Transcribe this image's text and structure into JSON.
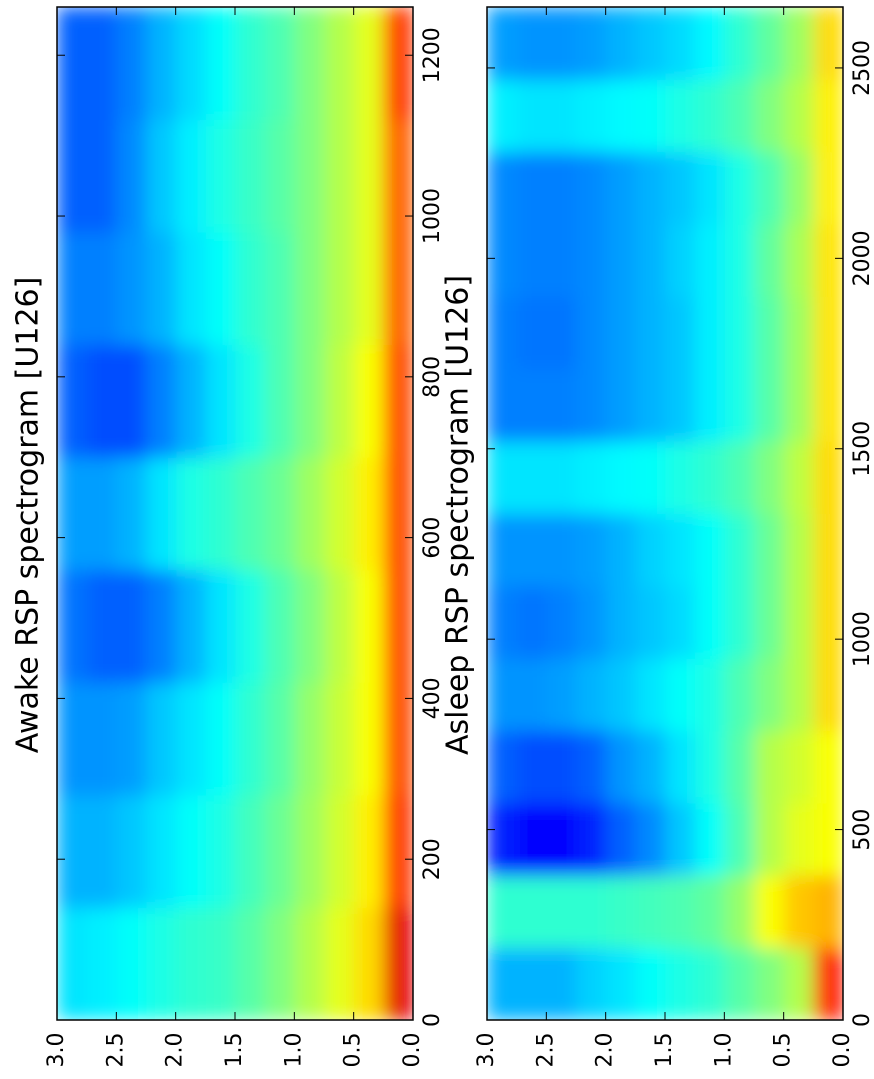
{
  "chart_data": [
    {
      "type": "heatmap",
      "title": "Awake RSP spectrogram [U126]",
      "colormap": "jet",
      "clim": [
        0,
        1
      ],
      "xlim": [
        0,
        1260
      ],
      "xticks": [
        0,
        200,
        400,
        600,
        800,
        1000,
        1200
      ],
      "ylim": [
        0,
        3
      ],
      "yticks": [
        {
          "value": 0,
          "label": "0.0"
        },
        {
          "value": 0.5,
          "label": "0.5"
        },
        {
          "value": 1,
          "label": "1.0"
        },
        {
          "value": 1.5,
          "label": "1.5"
        },
        {
          "value": 2,
          "label": "2.0"
        },
        {
          "value": 2.5,
          "label": "2.5"
        },
        {
          "value": 3,
          "label": "3.0"
        }
      ],
      "x_edges": [
        0,
        140,
        280,
        420,
        560,
        700,
        840,
        980,
        1120,
        1260
      ],
      "y_edges": [
        0,
        0.25,
        0.5,
        0.75,
        1,
        1.25,
        1.5,
        1.75,
        2,
        2.25,
        2.5,
        2.75,
        3
      ],
      "z": [
        [
          0.9,
          0.66,
          0.6,
          0.55,
          0.5,
          0.46,
          0.43,
          0.42,
          0.4,
          0.38,
          0.36,
          0.35
        ],
        [
          0.82,
          0.64,
          0.58,
          0.53,
          0.48,
          0.44,
          0.4,
          0.38,
          0.35,
          0.32,
          0.3,
          0.3
        ],
        [
          0.8,
          0.62,
          0.57,
          0.52,
          0.46,
          0.42,
          0.38,
          0.35,
          0.32,
          0.28,
          0.27,
          0.27
        ],
        [
          0.8,
          0.62,
          0.56,
          0.5,
          0.45,
          0.4,
          0.35,
          0.3,
          0.25,
          0.22,
          0.22,
          0.24
        ],
        [
          0.8,
          0.64,
          0.58,
          0.53,
          0.48,
          0.45,
          0.42,
          0.4,
          0.35,
          0.3,
          0.28,
          0.28
        ],
        [
          0.8,
          0.62,
          0.56,
          0.5,
          0.45,
          0.4,
          0.35,
          0.3,
          0.25,
          0.2,
          0.2,
          0.22
        ],
        [
          0.78,
          0.6,
          0.55,
          0.5,
          0.45,
          0.42,
          0.38,
          0.35,
          0.3,
          0.27,
          0.25,
          0.25
        ],
        [
          0.78,
          0.6,
          0.55,
          0.5,
          0.46,
          0.43,
          0.4,
          0.36,
          0.32,
          0.26,
          0.22,
          0.22
        ],
        [
          0.82,
          0.6,
          0.55,
          0.5,
          0.45,
          0.42,
          0.38,
          0.34,
          0.3,
          0.25,
          0.22,
          0.22
        ]
      ]
    },
    {
      "type": "heatmap",
      "title": "Asleep RSP spectrogram [U126]",
      "colormap": "jet",
      "clim": [
        0,
        1
      ],
      "xlim": [
        0,
        2660
      ],
      "xticks": [
        0,
        500,
        1000,
        1500,
        2000,
        2500
      ],
      "ylim": [
        0,
        3
      ],
      "yticks": [
        {
          "value": 0,
          "label": "0.0"
        },
        {
          "value": 0.5,
          "label": "0.5"
        },
        {
          "value": 1,
          "label": "1.0"
        },
        {
          "value": 1.5,
          "label": "1.5"
        },
        {
          "value": 2,
          "label": "2.0"
        },
        {
          "value": 2.5,
          "label": "2.5"
        },
        {
          "value": 3,
          "label": "3.0"
        }
      ],
      "x_edges": [
        0,
        190,
        380,
        570,
        760,
        950,
        1140,
        1330,
        1520,
        1710,
        1900,
        2090,
        2280,
        2470,
        2660
      ],
      "y_edges": [
        0,
        0.25,
        0.5,
        0.75,
        1,
        1.25,
        1.5,
        1.75,
        2,
        2.25,
        2.5,
        2.75,
        3
      ],
      "z": [
        [
          0.85,
          0.55,
          0.5,
          0.46,
          0.42,
          0.4,
          0.38,
          0.35,
          0.33,
          0.3,
          0.3,
          0.3
        ],
        [
          0.7,
          0.68,
          0.62,
          0.52,
          0.47,
          0.45,
          0.44,
          0.43,
          0.42,
          0.42,
          0.42,
          0.42
        ],
        [
          0.62,
          0.6,
          0.55,
          0.45,
          0.38,
          0.32,
          0.26,
          0.22,
          0.16,
          0.13,
          0.13,
          0.16
        ],
        [
          0.62,
          0.58,
          0.55,
          0.46,
          0.4,
          0.35,
          0.3,
          0.27,
          0.22,
          0.2,
          0.2,
          0.22
        ],
        [
          0.66,
          0.55,
          0.5,
          0.45,
          0.4,
          0.38,
          0.35,
          0.32,
          0.3,
          0.28,
          0.27,
          0.27
        ],
        [
          0.66,
          0.55,
          0.48,
          0.42,
          0.38,
          0.34,
          0.32,
          0.3,
          0.27,
          0.25,
          0.24,
          0.25
        ],
        [
          0.66,
          0.55,
          0.48,
          0.42,
          0.38,
          0.35,
          0.33,
          0.3,
          0.28,
          0.27,
          0.27,
          0.27
        ],
        [
          0.66,
          0.56,
          0.5,
          0.45,
          0.42,
          0.4,
          0.38,
          0.37,
          0.36,
          0.35,
          0.35,
          0.35
        ],
        [
          0.65,
          0.53,
          0.46,
          0.4,
          0.36,
          0.32,
          0.3,
          0.28,
          0.26,
          0.25,
          0.25,
          0.25
        ],
        [
          0.65,
          0.53,
          0.46,
          0.4,
          0.36,
          0.32,
          0.3,
          0.28,
          0.26,
          0.24,
          0.24,
          0.25
        ],
        [
          0.65,
          0.54,
          0.47,
          0.4,
          0.36,
          0.33,
          0.3,
          0.28,
          0.26,
          0.25,
          0.25,
          0.26
        ],
        [
          0.64,
          0.52,
          0.45,
          0.4,
          0.35,
          0.32,
          0.3,
          0.28,
          0.26,
          0.25,
          0.25,
          0.26
        ],
        [
          0.64,
          0.55,
          0.5,
          0.45,
          0.42,
          0.4,
          0.38,
          0.37,
          0.36,
          0.35,
          0.35,
          0.36
        ],
        [
          0.66,
          0.53,
          0.47,
          0.42,
          0.37,
          0.34,
          0.32,
          0.3,
          0.28,
          0.27,
          0.27,
          0.28
        ]
      ]
    }
  ]
}
